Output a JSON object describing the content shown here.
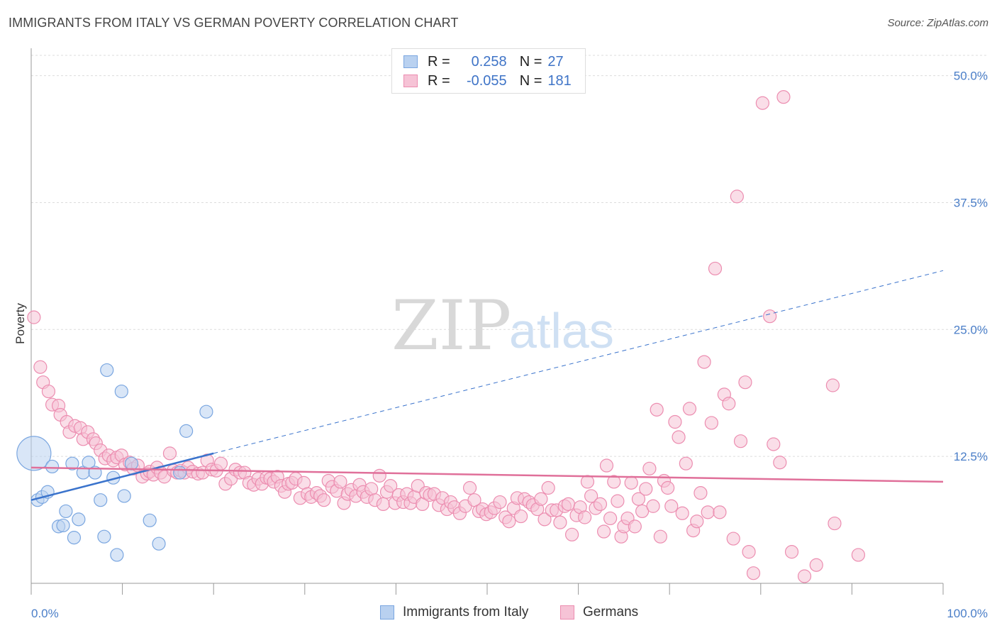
{
  "title": "IMMIGRANTS FROM ITALY VS GERMAN POVERTY CORRELATION CHART",
  "source": "Source: ZipAtlas.com",
  "watermark": {
    "zip": "ZIP",
    "atlas": "atlas"
  },
  "colors": {
    "blue": "#7aa6e0",
    "blue_fill": "#b9d1f0",
    "blue_line": "#3a73cc",
    "pink": "#ec8db0",
    "pink_fill": "#f6c3d6",
    "pink_line": "#e0709a",
    "tick": "#4a7ec8"
  },
  "legend": {
    "rows": [
      {
        "r_label": "R =",
        "r_value": "0.258",
        "n_label": "N =",
        "n_value": "27"
      },
      {
        "r_label": "R =",
        "r_value": "-0.055",
        "n_label": "N =",
        "n_value": "181"
      }
    ]
  },
  "bottom_legend": [
    "Immigrants from Italy",
    "Germans"
  ],
  "chart_data": {
    "type": "scatter",
    "title": "IMMIGRANTS FROM ITALY VS GERMAN POVERTY CORRELATION CHART",
    "xlabel": "",
    "ylabel": "Poverty",
    "xlim": [
      0,
      100
    ],
    "ylim": [
      0,
      52
    ],
    "x_tick_labels": [
      "0.0%",
      "100.0%"
    ],
    "y_ticks": [
      12.5,
      25.0,
      37.5,
      50.0
    ],
    "y_tick_labels": [
      "12.5%",
      "25.0%",
      "37.5%",
      "50.0%"
    ],
    "grid": true,
    "legend_position": "top-center",
    "series": [
      {
        "name": "Immigrants from Italy",
        "r": 0.258,
        "n": 27,
        "trend": {
          "x0": 0,
          "y0": 8.2,
          "x1": 20,
          "y1": 12.8,
          "dashed_to_x": 100,
          "dashed_to_y": 30.8
        },
        "points": [
          [
            0.3,
            12.8,
            24
          ],
          [
            0.7,
            8.2,
            9
          ],
          [
            1.2,
            8.5,
            9
          ],
          [
            1.8,
            9.0,
            9
          ],
          [
            2.3,
            11.5,
            9
          ],
          [
            3.0,
            5.6,
            9
          ],
          [
            3.5,
            5.7,
            9
          ],
          [
            3.8,
            7.1,
            9
          ],
          [
            4.5,
            11.8,
            9
          ],
          [
            4.7,
            4.5,
            9
          ],
          [
            5.2,
            6.3,
            9
          ],
          [
            5.7,
            10.9,
            9
          ],
          [
            6.3,
            11.9,
            9
          ],
          [
            7.0,
            10.9,
            9
          ],
          [
            7.6,
            8.2,
            9
          ],
          [
            8.0,
            4.6,
            9
          ],
          [
            8.3,
            21.0,
            9
          ],
          [
            9.0,
            10.4,
            9
          ],
          [
            9.4,
            2.8,
            9
          ],
          [
            9.9,
            18.9,
            9
          ],
          [
            10.2,
            8.6,
            9
          ],
          [
            11.0,
            11.8,
            9
          ],
          [
            13.0,
            6.2,
            9
          ],
          [
            14.0,
            3.9,
            9
          ],
          [
            16.3,
            10.9,
            9
          ],
          [
            17.0,
            15.0,
            9
          ],
          [
            19.2,
            16.9,
            9
          ]
        ]
      },
      {
        "name": "Germans",
        "r": -0.055,
        "n": 181,
        "trend": {
          "x0": 0,
          "y0": 11.4,
          "x1": 100,
          "y1": 10.0
        },
        "points": [
          [
            0.3,
            26.2
          ],
          [
            1.0,
            21.3
          ],
          [
            1.3,
            19.8
          ],
          [
            1.9,
            18.9
          ],
          [
            2.3,
            17.6
          ],
          [
            3.0,
            17.5
          ],
          [
            3.2,
            16.6
          ],
          [
            3.9,
            15.9
          ],
          [
            4.2,
            14.9
          ],
          [
            4.8,
            15.5
          ],
          [
            5.4,
            15.3
          ],
          [
            5.7,
            14.2
          ],
          [
            6.2,
            14.9
          ],
          [
            6.8,
            14.2
          ],
          [
            7.1,
            13.8
          ],
          [
            7.6,
            13.1
          ],
          [
            8.1,
            12.3
          ],
          [
            8.5,
            12.6
          ],
          [
            9.0,
            12.1
          ],
          [
            9.4,
            12.4
          ],
          [
            9.9,
            12.6
          ],
          [
            10.3,
            11.7
          ],
          [
            10.8,
            11.9
          ],
          [
            11.2,
            11.3
          ],
          [
            11.7,
            11.6
          ],
          [
            12.2,
            10.5
          ],
          [
            12.7,
            10.8
          ],
          [
            13.0,
            11.0
          ],
          [
            13.4,
            10.7
          ],
          [
            13.8,
            11.4
          ],
          [
            14.2,
            10.9
          ],
          [
            14.6,
            10.5
          ],
          [
            15.2,
            12.8
          ],
          [
            15.6,
            11.1
          ],
          [
            16.0,
            10.9
          ],
          [
            16.4,
            11.1
          ],
          [
            16.8,
            10.9
          ],
          [
            17.2,
            11.4
          ],
          [
            17.7,
            11.0
          ],
          [
            18.3,
            10.8
          ],
          [
            18.8,
            10.9
          ],
          [
            19.3,
            12.1
          ],
          [
            19.8,
            11.2
          ],
          [
            20.3,
            11.1
          ],
          [
            20.8,
            11.8
          ],
          [
            21.3,
            9.8
          ],
          [
            21.9,
            10.3
          ],
          [
            22.4,
            11.2
          ],
          [
            22.9,
            10.9
          ],
          [
            23.4,
            10.9
          ],
          [
            23.9,
            9.9
          ],
          [
            24.4,
            9.7
          ],
          [
            24.9,
            10.3
          ],
          [
            25.3,
            9.8
          ],
          [
            25.8,
            10.4
          ],
          [
            26.2,
            10.3
          ],
          [
            26.6,
            10.0
          ],
          [
            27.0,
            10.5
          ],
          [
            27.4,
            9.6
          ],
          [
            27.8,
            9.0
          ],
          [
            28.2,
            9.8
          ],
          [
            28.6,
            9.9
          ],
          [
            29.0,
            10.3
          ],
          [
            29.5,
            8.4
          ],
          [
            29.9,
            9.9
          ],
          [
            30.3,
            8.8
          ],
          [
            30.7,
            8.5
          ],
          [
            31.3,
            8.9
          ],
          [
            31.7,
            8.6
          ],
          [
            32.1,
            8.2
          ],
          [
            32.6,
            10.1
          ],
          [
            33.0,
            9.5
          ],
          [
            33.5,
            9.1
          ],
          [
            33.9,
            10.0
          ],
          [
            34.3,
            7.9
          ],
          [
            34.7,
            8.8
          ],
          [
            35.1,
            9.2
          ],
          [
            35.6,
            8.6
          ],
          [
            36.0,
            9.7
          ],
          [
            36.4,
            9.0
          ],
          [
            36.8,
            8.5
          ],
          [
            37.3,
            9.3
          ],
          [
            37.7,
            8.2
          ],
          [
            38.2,
            10.6
          ],
          [
            38.6,
            7.8
          ],
          [
            39.0,
            9.0
          ],
          [
            39.4,
            9.6
          ],
          [
            39.9,
            7.9
          ],
          [
            40.3,
            8.7
          ],
          [
            40.8,
            8.0
          ],
          [
            41.2,
            8.8
          ],
          [
            41.6,
            7.9
          ],
          [
            42.0,
            8.5
          ],
          [
            42.4,
            9.6
          ],
          [
            42.9,
            7.8
          ],
          [
            43.3,
            8.9
          ],
          [
            43.7,
            8.7
          ],
          [
            44.2,
            8.8
          ],
          [
            44.7,
            7.7
          ],
          [
            45.1,
            8.4
          ],
          [
            45.6,
            7.3
          ],
          [
            46.0,
            8.0
          ],
          [
            46.4,
            7.5
          ],
          [
            47.0,
            6.9
          ],
          [
            47.6,
            7.6
          ],
          [
            48.1,
            9.4
          ],
          [
            48.6,
            8.2
          ],
          [
            49.1,
            7.1
          ],
          [
            49.5,
            7.3
          ],
          [
            49.9,
            6.8
          ],
          [
            50.4,
            7.0
          ],
          [
            50.8,
            7.4
          ],
          [
            51.4,
            8.0
          ],
          [
            52.0,
            6.5
          ],
          [
            52.4,
            6.1
          ],
          [
            52.9,
            7.4
          ],
          [
            53.3,
            8.4
          ],
          [
            53.7,
            6.6
          ],
          [
            54.1,
            8.3
          ],
          [
            54.6,
            8.0
          ],
          [
            55.0,
            7.7
          ],
          [
            55.5,
            7.3
          ],
          [
            55.9,
            8.3
          ],
          [
            56.3,
            6.3
          ],
          [
            56.7,
            9.4
          ],
          [
            57.1,
            7.2
          ],
          [
            57.6,
            7.2
          ],
          [
            58.0,
            6.0
          ],
          [
            58.5,
            7.6
          ],
          [
            58.9,
            7.8
          ],
          [
            59.3,
            4.8
          ],
          [
            59.8,
            6.7
          ],
          [
            60.2,
            7.5
          ],
          [
            60.7,
            6.5
          ],
          [
            61.0,
            10.0
          ],
          [
            61.4,
            8.6
          ],
          [
            61.9,
            7.4
          ],
          [
            62.4,
            7.8
          ],
          [
            62.8,
            5.1
          ],
          [
            63.1,
            11.6
          ],
          [
            63.5,
            6.4
          ],
          [
            63.9,
            10.0
          ],
          [
            64.3,
            8.1
          ],
          [
            64.7,
            4.6
          ],
          [
            65.0,
            5.6
          ],
          [
            65.4,
            6.4
          ],
          [
            65.8,
            9.9
          ],
          [
            66.2,
            5.6
          ],
          [
            66.6,
            8.3
          ],
          [
            67.0,
            7.1
          ],
          [
            67.4,
            9.3
          ],
          [
            67.8,
            11.3
          ],
          [
            68.2,
            7.6
          ],
          [
            68.6,
            17.1
          ],
          [
            69.0,
            4.6
          ],
          [
            69.4,
            10.1
          ],
          [
            69.8,
            9.4
          ],
          [
            70.2,
            7.6
          ],
          [
            70.6,
            15.9
          ],
          [
            71.0,
            14.4
          ],
          [
            71.4,
            6.9
          ],
          [
            71.8,
            11.8
          ],
          [
            72.2,
            17.2
          ],
          [
            72.6,
            5.2
          ],
          [
            73.0,
            6.1
          ],
          [
            73.4,
            8.9
          ],
          [
            73.8,
            21.8
          ],
          [
            74.2,
            7.0
          ],
          [
            74.6,
            15.8
          ],
          [
            75.0,
            31.0
          ],
          [
            75.5,
            7.0
          ],
          [
            76.0,
            18.6
          ],
          [
            76.5,
            17.7
          ],
          [
            77.0,
            4.4
          ],
          [
            77.4,
            38.1
          ],
          [
            77.8,
            14.0
          ],
          [
            78.3,
            19.8
          ],
          [
            78.7,
            3.1
          ],
          [
            79.2,
            1.0
          ],
          [
            80.2,
            47.3
          ],
          [
            81.0,
            26.3
          ],
          [
            81.4,
            13.7
          ],
          [
            82.1,
            11.9
          ],
          [
            82.5,
            47.9
          ],
          [
            83.4,
            3.1
          ],
          [
            84.8,
            0.7
          ],
          [
            86.1,
            1.8
          ],
          [
            87.9,
            19.5
          ],
          [
            88.1,
            5.9
          ],
          [
            90.7,
            2.8
          ]
        ]
      }
    ]
  }
}
